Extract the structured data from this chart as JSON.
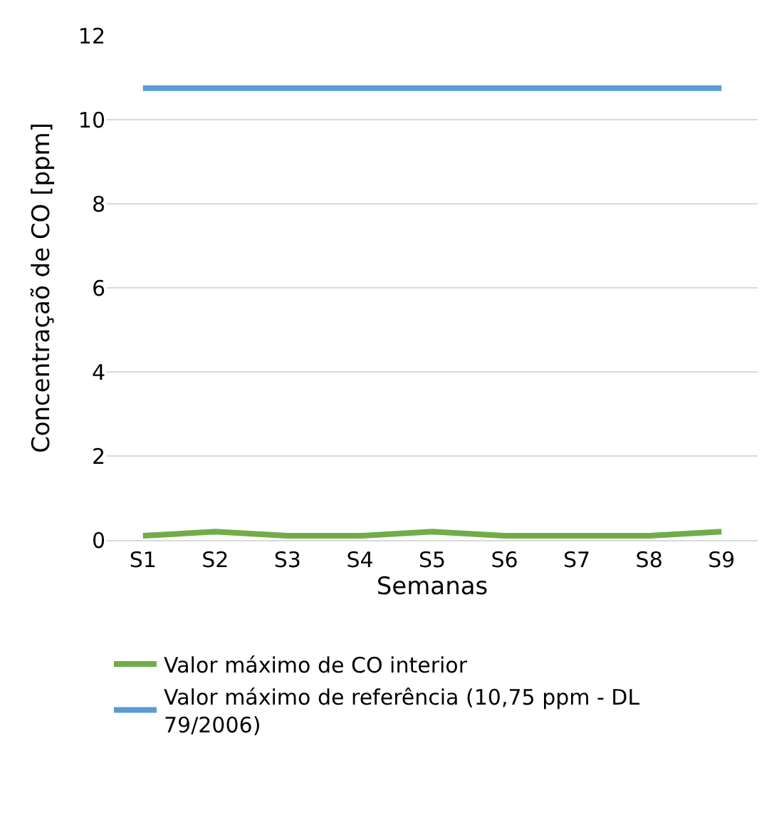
{
  "chart_data": {
    "type": "line",
    "xlabel": "Semanas",
    "ylabel": "Concentraçaõ de CO [ppm]",
    "categories": [
      "S1",
      "S2",
      "S3",
      "S4",
      "S5",
      "S6",
      "S7",
      "S8",
      "S9"
    ],
    "series": [
      {
        "name": "Valor máximo de CO interior",
        "color": "#70ad47",
        "values": [
          0.1,
          0.2,
          0.1,
          0.1,
          0.2,
          0.1,
          0.1,
          0.1,
          0.2
        ]
      },
      {
        "name": "Valor máximo de referência (10,75 ppm - DL 79/2006)",
        "color": "#5b9bd5",
        "values": [
          10.75,
          10.75,
          10.75,
          10.75,
          10.75,
          10.75,
          10.75,
          10.75,
          10.75
        ]
      }
    ],
    "ylim": [
      0,
      12
    ],
    "yticks": [
      0,
      2,
      4,
      6,
      8,
      10,
      12
    ],
    "grid": "y",
    "legend": "bottom",
    "marker": "none",
    "line_style": "solid"
  }
}
